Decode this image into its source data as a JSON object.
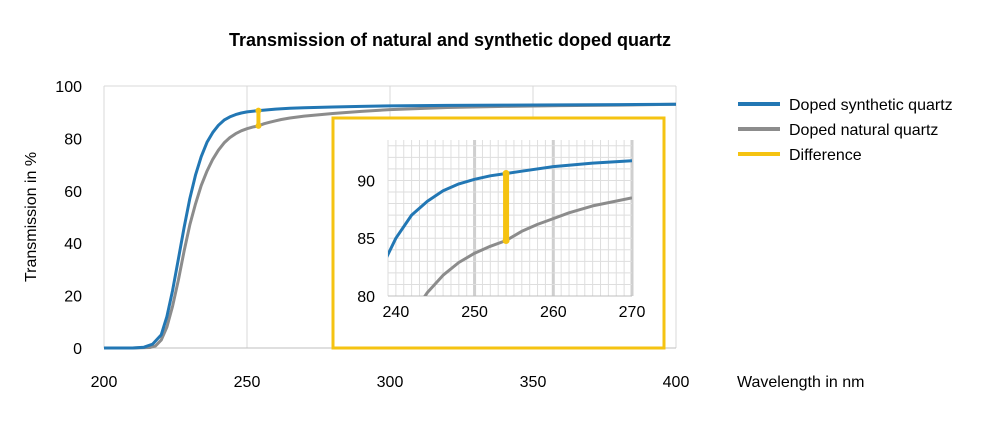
{
  "chart_data": {
    "type": "line",
    "title": "Transmission of natural and synthetic doped quartz",
    "xlabel": "Wavelength in nm",
    "ylabel": "Transmission in %",
    "xlim": [
      200,
      400
    ],
    "ylim": [
      0,
      100
    ],
    "xticks": [
      "200",
      "250",
      "300",
      "350",
      "400"
    ],
    "yticks": [
      "0",
      "20",
      "40",
      "60",
      "80",
      "100"
    ],
    "grid": "vertical",
    "legend_position": "right",
    "series": [
      {
        "name": "Doped synthetic quartz",
        "color": "#2277b4",
        "x": [
          200,
          210,
          214,
          217,
          220,
          222,
          224,
          226,
          228,
          230,
          232,
          234,
          236,
          238,
          240,
          242,
          244,
          246,
          248,
          250,
          252,
          254,
          256,
          260,
          265,
          270,
          280,
          290,
          300,
          320,
          340,
          360,
          380,
          400
        ],
        "y": [
          0,
          0,
          0.3,
          1.5,
          5,
          12,
          22,
          34,
          46,
          57,
          66,
          73,
          78.5,
          82.2,
          85,
          87,
          88.2,
          89.1,
          89.7,
          90.1,
          90.4,
          90.6,
          90.8,
          91.2,
          91.5,
          91.7,
          92,
          92.2,
          92.4,
          92.6,
          92.7,
          92.8,
          92.9,
          93
        ]
      },
      {
        "name": "Doped natural quartz",
        "color": "#8c8c8c",
        "x": [
          200,
          210,
          216,
          218,
          220,
          222,
          224,
          226,
          228,
          230,
          232,
          234,
          236,
          238,
          240,
          242,
          244,
          246,
          248,
          250,
          252,
          254,
          256,
          258,
          260,
          262,
          265,
          270,
          280,
          290,
          300,
          320,
          340,
          360,
          380,
          400
        ],
        "y": [
          0,
          0,
          0.2,
          0.8,
          3,
          8,
          16,
          26,
          37,
          47,
          55,
          62,
          67.5,
          72,
          75.5,
          78.3,
          80.3,
          81.8,
          82.9,
          83.7,
          84.3,
          84.8,
          85.6,
          86.2,
          86.7,
          87.2,
          87.8,
          88.5,
          89.5,
          90.3,
          91,
          91.8,
          92.2,
          92.5,
          92.7,
          93
        ]
      }
    ],
    "difference": {
      "name": "Difference",
      "color": "#f5c311",
      "x": 254,
      "y_from": 84.8,
      "y_to": 90.6
    },
    "inset": {
      "xlim": [
        239,
        270
      ],
      "ylim": [
        80,
        93.5
      ],
      "xticks": [
        "240",
        "250",
        "260",
        "270"
      ],
      "yticks": [
        "80",
        "85",
        "90"
      ]
    }
  }
}
